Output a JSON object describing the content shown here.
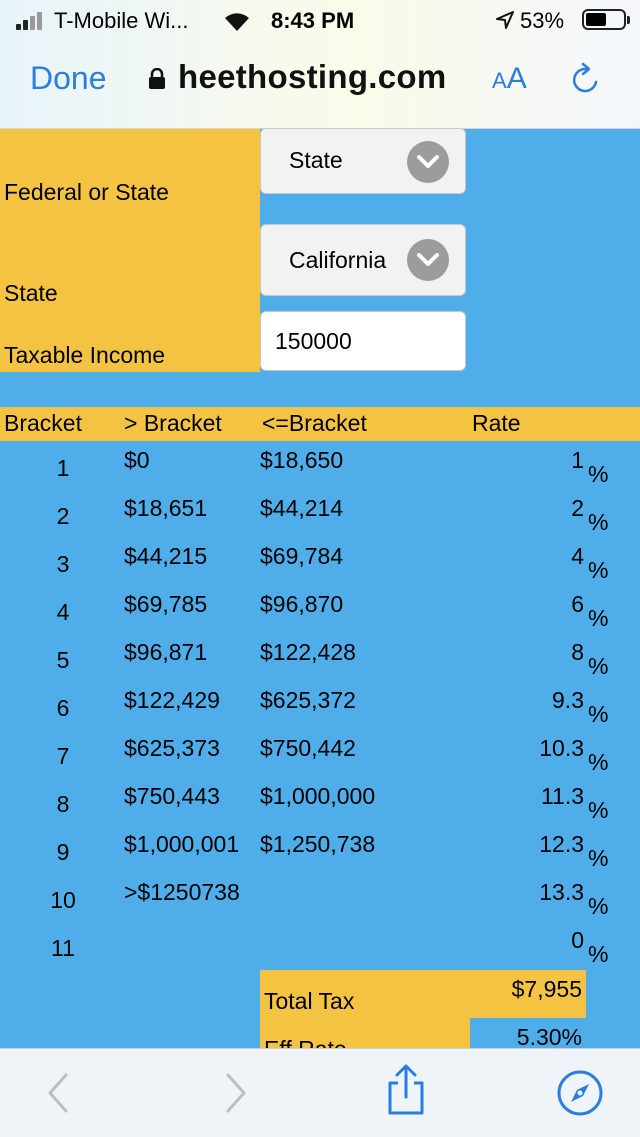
{
  "status": {
    "carrier": "T-Mobile Wi...",
    "time": "8:43 PM",
    "battery": "53%"
  },
  "browser": {
    "done_label": "Done",
    "url": "heethosting.com",
    "text_size_small": "A",
    "text_size_big": "A"
  },
  "form": {
    "federal_or_state_label": "Federal or State",
    "federal_or_state_value": "State",
    "state_label": "State",
    "state_value": "California",
    "income_label": "Taxable Income",
    "income_value": "150000"
  },
  "table": {
    "headers": [
      "Bracket",
      "> Bracket",
      "<=Bracket",
      "Rate"
    ],
    "percent_sign": "%",
    "rows": [
      {
        "bracket": "1",
        "lower": "$0",
        "upper": "$18,650",
        "rate": "1"
      },
      {
        "bracket": "2",
        "lower": "$18,651",
        "upper": "$44,214",
        "rate": "2"
      },
      {
        "bracket": "3",
        "lower": "$44,215",
        "upper": "$69,784",
        "rate": "4"
      },
      {
        "bracket": "4",
        "lower": "$69,785",
        "upper": "$96,870",
        "rate": "6"
      },
      {
        "bracket": "5",
        "lower": "$96,871",
        "upper": "$122,428",
        "rate": "8"
      },
      {
        "bracket": "6",
        "lower": "$122,429",
        "upper": "$625,372",
        "rate": "9.3"
      },
      {
        "bracket": "7",
        "lower": "$625,373",
        "upper": "$750,442",
        "rate": "10.3"
      },
      {
        "bracket": "8",
        "lower": "$750,443",
        "upper": "$1,000,000",
        "rate": "11.3"
      },
      {
        "bracket": "9",
        "lower": "$1,000,001",
        "upper": "$1,250,738",
        "rate": "12.3"
      },
      {
        "bracket": "10",
        "lower": ">$1250738",
        "upper": "",
        "rate": "13.3"
      },
      {
        "bracket": "11",
        "lower": "",
        "upper": "",
        "rate": "0"
      }
    ]
  },
  "totals": {
    "total_tax_label": "Total Tax",
    "total_tax_value": "$7,955",
    "eff_rate_label": "Eff Rate",
    "eff_rate_value": "5.30%"
  },
  "icons": {
    "signal": "cellular-signal-icon",
    "wifi": "wifi-icon",
    "location": "location-arrow-icon",
    "battery": "battery-icon",
    "lock": "lock-icon",
    "reload": "reload-icon",
    "back": "back-arrow-icon",
    "forward": "forward-arrow-icon",
    "share": "share-icon",
    "safari": "compass-icon"
  },
  "colors": {
    "accent_blue": "#2a7ee0",
    "sheet_blue": "#4faee9",
    "sheet_yellow": "#f4c342"
  }
}
